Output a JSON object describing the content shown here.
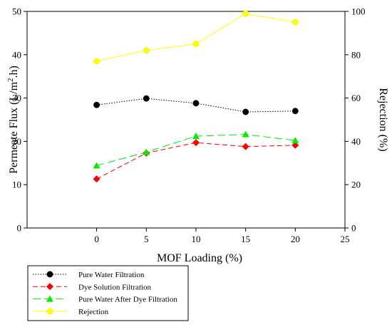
{
  "chart_data": {
    "type": "line",
    "title": "",
    "xlabel": "MOF Loading (%)",
    "ylabel_prefix": "Permeate Flux (L/m",
    "ylabel_sup": "2",
    "ylabel_suffix": ".h)",
    "y2label": "Rejection (%)",
    "xlim": [
      -7,
      25
    ],
    "ylim": [
      0,
      50
    ],
    "y2lim": [
      0,
      100
    ],
    "xticks": [
      0,
      5,
      10,
      15,
      20,
      25
    ],
    "yticks": [
      0,
      10,
      20,
      30,
      40,
      50
    ],
    "y2ticks": [
      0,
      20,
      40,
      60,
      80,
      100
    ],
    "grid": false,
    "legend_position": "bottom-left",
    "x": [
      0,
      5,
      10,
      15,
      20
    ],
    "series": [
      {
        "name": "Pure Water Filtration",
        "axis": "left",
        "values": [
          28.4,
          29.9,
          28.8,
          26.8,
          27.0
        ],
        "color": "#000000",
        "marker": "circle",
        "dash": "dotted"
      },
      {
        "name": "Dye Solution Filtration",
        "axis": "left",
        "values": [
          11.3,
          17.3,
          19.7,
          18.8,
          19.1
        ],
        "color": "#ff0000",
        "marker": "diamond",
        "dash": "dashed"
      },
      {
        "name": "Pure Water After Dye Filtration",
        "axis": "left",
        "values": [
          14.4,
          17.5,
          21.2,
          21.6,
          20.2
        ],
        "color": "#00ee00",
        "marker": "triangle",
        "dash": "longdash"
      },
      {
        "name": "Rejection",
        "axis": "right",
        "values": [
          77,
          82,
          85,
          99,
          95
        ],
        "color": "#ffff00",
        "marker": "circle",
        "dash": "solid"
      }
    ]
  }
}
